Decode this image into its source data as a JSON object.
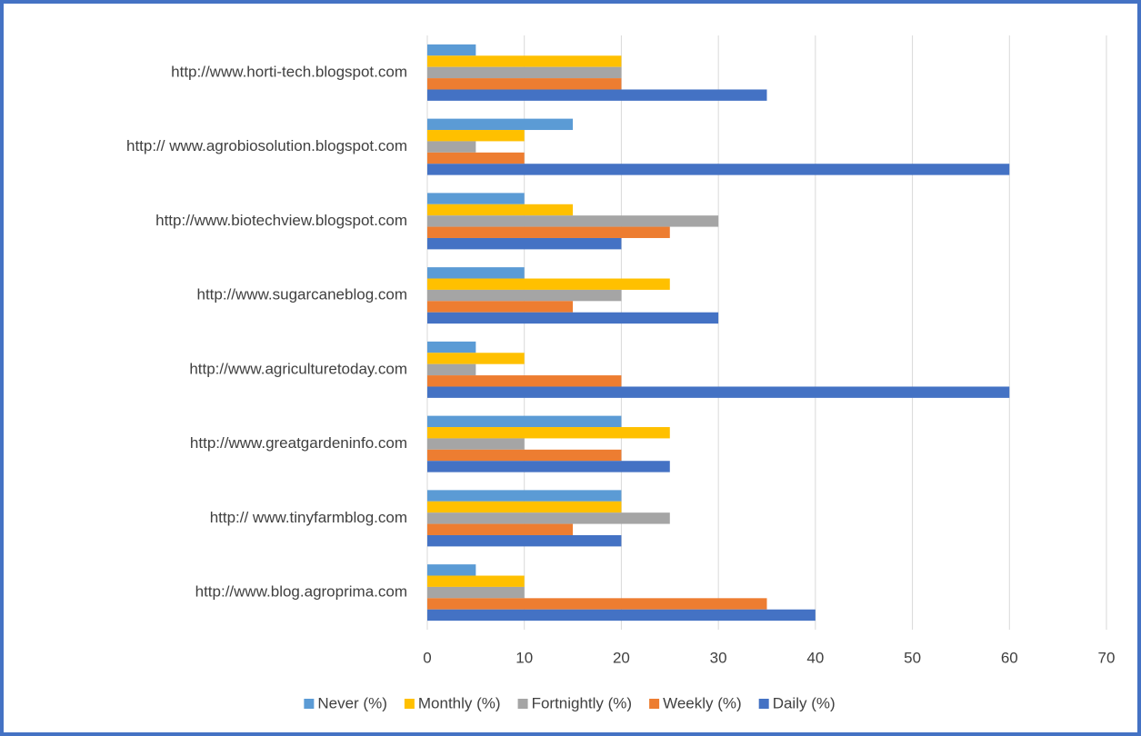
{
  "chart_data": {
    "type": "bar",
    "orientation": "horizontal",
    "categories": [
      "http://www.horti-tech.blogspot.com",
      "http:// www.agrobiosolution.blogspot.com",
      "http://www.biotechview.blogspot.com",
      "http://www.sugarcaneblog.com",
      "http://www.agriculturetoday.com",
      "http://www.greatgardeninfo.com",
      "http:// www.tinyfarmblog.com",
      "http://www.blog.agroprima.com"
    ],
    "series": [
      {
        "name": "Never (%)",
        "color": "#5b9bd5",
        "values": [
          5,
          15,
          10,
          10,
          5,
          20,
          20,
          5
        ]
      },
      {
        "name": "Monthly (%)",
        "color": "#ffc000",
        "values": [
          20,
          10,
          15,
          25,
          10,
          25,
          20,
          10
        ]
      },
      {
        "name": "Fortnightly (%)",
        "color": "#a5a5a5",
        "values": [
          20,
          5,
          30,
          20,
          5,
          10,
          25,
          10
        ]
      },
      {
        "name": "Weekly (%)",
        "color": "#ed7d31",
        "values": [
          20,
          10,
          25,
          15,
          20,
          20,
          15,
          35
        ]
      },
      {
        "name": "Daily (%)",
        "color": "#4472c4",
        "values": [
          35,
          60,
          20,
          30,
          60,
          25,
          20,
          40
        ]
      }
    ],
    "xlim": [
      0,
      70
    ],
    "xticks": [
      0,
      10,
      20,
      30,
      40,
      50,
      60,
      70
    ],
    "grid": true,
    "legend": "bottom"
  }
}
